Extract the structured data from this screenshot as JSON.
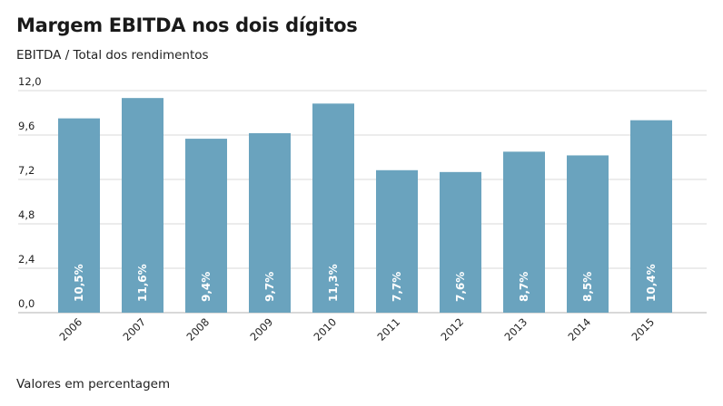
{
  "title": "Margem EBITDA nos dois dígitos",
  "subtitle": "EBITDA / Total dos rendimentos",
  "footnote": "Valores em percentagem",
  "colors": {
    "bar": "#6aa3be",
    "grid": "#d8d8d8",
    "axis": "#b0b0b0"
  },
  "chart_data": {
    "type": "bar",
    "title": "Margem EBITDA nos dois dígitos",
    "subtitle": "EBITDA / Total dos rendimentos",
    "xlabel": "",
    "ylabel": "",
    "ylim": [
      0,
      12
    ],
    "y_ticks": [
      "0,0",
      "2,4",
      "4,8",
      "7,2",
      "9,6",
      "12,0"
    ],
    "y_tick_values": [
      0,
      2.4,
      4.8,
      7.2,
      9.6,
      12.0
    ],
    "grid": true,
    "categories": [
      "2006",
      "2007",
      "2008",
      "2009",
      "2010",
      "2011",
      "2012",
      "2013",
      "2014",
      "2015"
    ],
    "values": [
      10.5,
      11.6,
      9.4,
      9.7,
      11.3,
      7.7,
      7.6,
      8.7,
      8.5,
      10.4
    ],
    "data_labels": [
      "10,5%",
      "11,6%",
      "9,4%",
      "9,7%",
      "11,3%",
      "7,7%",
      "7,6%",
      "8,7%",
      "8,5%",
      "10,4%"
    ]
  }
}
